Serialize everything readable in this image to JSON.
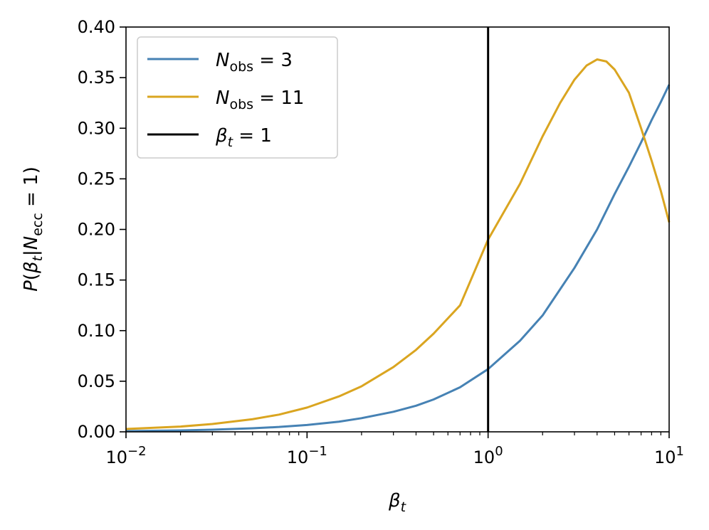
{
  "chart_data": {
    "type": "line",
    "xscale": "log",
    "xlim": [
      0.01,
      10
    ],
    "ylim": [
      0.0,
      0.4
    ],
    "xlabel": "β_t",
    "ylabel": "P(β_t|N_ecc = 1)",
    "xticks": [
      {
        "base": "10",
        "exp": "−2",
        "value": 0.01
      },
      {
        "base": "10",
        "exp": "−1",
        "value": 0.1
      },
      {
        "base": "10",
        "exp": "0",
        "value": 1
      },
      {
        "base": "10",
        "exp": "1",
        "value": 10
      }
    ],
    "yticks": [
      "0.00",
      "0.05",
      "0.10",
      "0.15",
      "0.20",
      "0.25",
      "0.30",
      "0.35",
      "0.40"
    ],
    "grid": false,
    "legend_position": "top-left",
    "series": [
      {
        "name": "N_obs = 3",
        "color": "#4682b4",
        "points": [
          [
            0.01,
            0.0007
          ],
          [
            0.02,
            0.0014
          ],
          [
            0.03,
            0.0021
          ],
          [
            0.05,
            0.0035
          ],
          [
            0.07,
            0.0048
          ],
          [
            0.1,
            0.0068
          ],
          [
            0.15,
            0.01
          ],
          [
            0.2,
            0.0135
          ],
          [
            0.3,
            0.0198
          ],
          [
            0.4,
            0.0258
          ],
          [
            0.5,
            0.032
          ],
          [
            0.7,
            0.044
          ],
          [
            1.0,
            0.062
          ],
          [
            1.5,
            0.09
          ],
          [
            2.0,
            0.115
          ],
          [
            3.0,
            0.162
          ],
          [
            4.0,
            0.2
          ],
          [
            5.0,
            0.235
          ],
          [
            6.0,
            0.262
          ],
          [
            7.0,
            0.286
          ],
          [
            8.0,
            0.308
          ],
          [
            9.0,
            0.326
          ],
          [
            10.0,
            0.343
          ]
        ]
      },
      {
        "name": "N_obs = 11",
        "color": "#daa520",
        "points": [
          [
            0.01,
            0.0028
          ],
          [
            0.02,
            0.0052
          ],
          [
            0.03,
            0.0077
          ],
          [
            0.05,
            0.0125
          ],
          [
            0.07,
            0.017
          ],
          [
            0.1,
            0.024
          ],
          [
            0.15,
            0.035
          ],
          [
            0.2,
            0.045
          ],
          [
            0.3,
            0.064
          ],
          [
            0.4,
            0.081
          ],
          [
            0.5,
            0.097
          ],
          [
            0.7,
            0.125
          ],
          [
            1.0,
            0.19
          ],
          [
            1.5,
            0.245
          ],
          [
            2.0,
            0.292
          ],
          [
            2.5,
            0.325
          ],
          [
            3.0,
            0.348
          ],
          [
            3.5,
            0.362
          ],
          [
            4.0,
            0.368
          ],
          [
            4.5,
            0.366
          ],
          [
            5.0,
            0.358
          ],
          [
            6.0,
            0.335
          ],
          [
            7.0,
            0.3
          ],
          [
            8.0,
            0.268
          ],
          [
            9.0,
            0.238
          ],
          [
            10.0,
            0.207
          ]
        ]
      },
      {
        "name": "β_t = 1",
        "color": "#000000",
        "vline_x": 1
      }
    ]
  }
}
